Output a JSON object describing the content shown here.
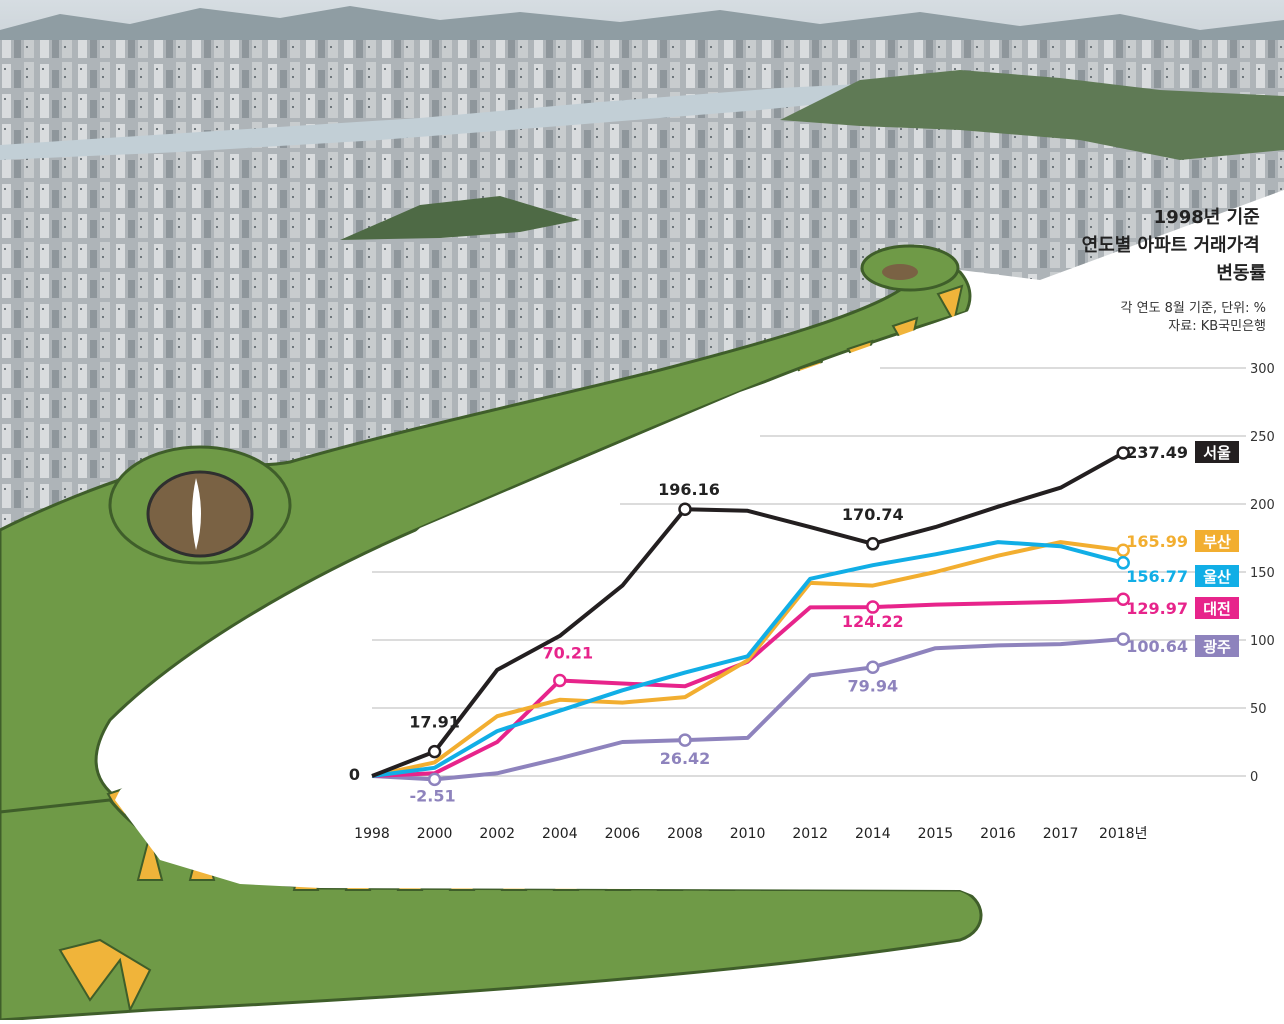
{
  "chart_data": {
    "type": "line",
    "title": "1998년 기준\n연도별 아파트 거래가격\n변동률",
    "subtitle": "각 연도 8월 기준, 단위: %",
    "source": "자료: KB국민은행",
    "xlabel": "",
    "ylabel": "",
    "categories": [
      "1998",
      "2000",
      "2002",
      "2004",
      "2006",
      "2008",
      "2010",
      "2012",
      "2014",
      "2015",
      "2016",
      "2017",
      "2018년"
    ],
    "ylim": [
      0,
      300
    ],
    "yticks": [
      0,
      50,
      100,
      150,
      200,
      250,
      300
    ],
    "grid": true,
    "legend": "right-end labels",
    "series": [
      {
        "name": "서울",
        "color": "#231f20",
        "values": [
          0,
          17.91,
          78,
          103,
          140,
          196.16,
          195,
          183,
          170.74,
          183,
          198,
          212,
          237.49
        ],
        "labels": [
          {
            "i": 0,
            "text": "0"
          },
          {
            "i": 1,
            "text": "17.91"
          },
          {
            "i": 5,
            "text": "196.16"
          },
          {
            "i": 8,
            "text": "170.74"
          },
          {
            "i": 12,
            "text": "237.49"
          }
        ]
      },
      {
        "name": "부산",
        "color": "#f2ae30",
        "values": [
          0,
          10,
          44,
          56,
          54,
          58,
          85,
          142,
          140,
          150,
          162,
          172,
          165.99
        ],
        "labels": [
          {
            "i": 12,
            "text": "165.99"
          }
        ]
      },
      {
        "name": "울산",
        "color": "#11aee6",
        "values": [
          0,
          6,
          33,
          48,
          63,
          76,
          88,
          145,
          155,
          163,
          172,
          169,
          156.77
        ],
        "labels": [
          {
            "i": 12,
            "text": "156.77"
          }
        ]
      },
      {
        "name": "대전",
        "color": "#e7248b",
        "values": [
          0,
          2,
          25,
          70.21,
          68,
          66,
          84,
          124,
          124.22,
          126,
          127,
          128,
          129.97
        ],
        "labels": [
          {
            "i": 3,
            "text": "70.21"
          },
          {
            "i": 8,
            "text": "124.22"
          },
          {
            "i": 12,
            "text": "129.97"
          }
        ]
      },
      {
        "name": "광주",
        "color": "#8e83bd",
        "values": [
          0,
          -2.51,
          2,
          13,
          25,
          26.42,
          28,
          74,
          79.94,
          94,
          96,
          97,
          100.64
        ],
        "labels": [
          {
            "i": 1,
            "text": "-2.51"
          },
          {
            "i": 5,
            "text": "26.42"
          },
          {
            "i": 8,
            "text": "79.94"
          },
          {
            "i": 12,
            "text": "100.64"
          }
        ]
      }
    ],
    "colors": {
      "sky": "#cfd8de",
      "city": "#b7bcc0",
      "hills": "#6f8863",
      "croc_green": "#6f9a47",
      "croc_dark": "#4d7332",
      "tooth": "#f0b43a",
      "grid": "#b9b9b9"
    }
  }
}
